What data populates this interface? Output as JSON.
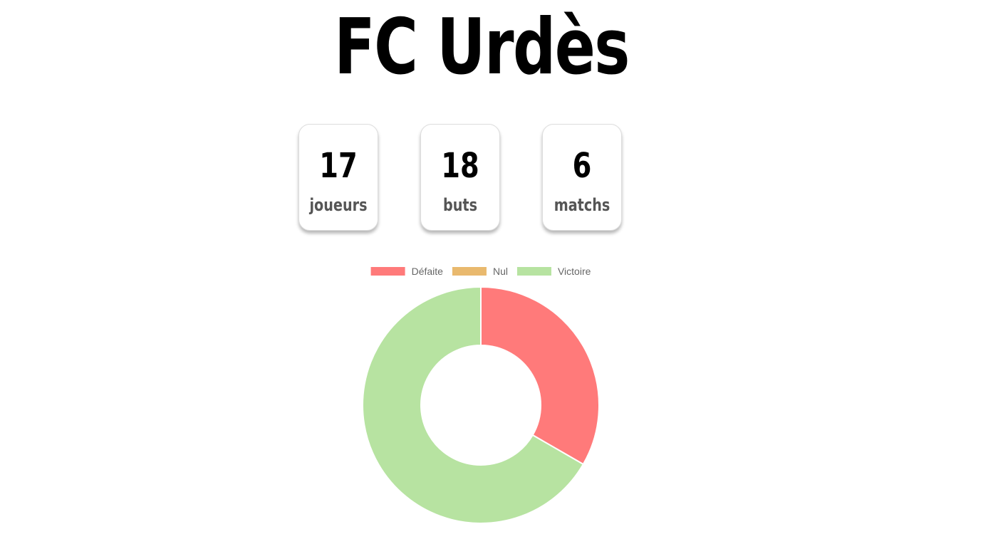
{
  "header": {
    "title": "FC Urdès"
  },
  "stats": [
    {
      "value": "17",
      "label": "joueurs"
    },
    {
      "value": "18",
      "label": "buts"
    },
    {
      "value": "6",
      "label": "matchs"
    }
  ],
  "chart_data": {
    "type": "doughnut",
    "title": "",
    "legend_position": "top",
    "categories": [
      "Défaite",
      "Nul",
      "Victoire"
    ],
    "values": [
      2,
      0,
      4
    ],
    "colors": [
      "#ff7a7a",
      "#e9b96e",
      "#b7e3a1"
    ],
    "slice_border_color": "#ffffff"
  }
}
